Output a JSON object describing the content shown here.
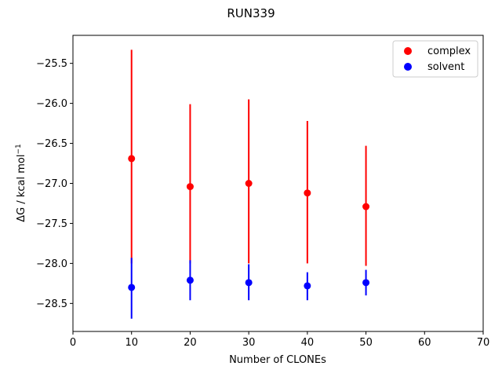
{
  "chart_data": {
    "type": "scatter",
    "title": "RUN339",
    "xlabel": "Number of CLONEs",
    "ylabel": "ΔG / kcal mol",
    "ylabel_sup": "−1",
    "xlim": [
      0,
      70
    ],
    "ylim": [
      -28.85,
      -25.15
    ],
    "xticks": [
      0,
      10,
      20,
      30,
      40,
      50,
      60,
      70
    ],
    "xtick_labels": [
      "0",
      "10",
      "20",
      "30",
      "40",
      "50",
      "60",
      "70"
    ],
    "yticks": [
      -25.5,
      -26.0,
      -26.5,
      -27.0,
      -27.5,
      -28.0,
      -28.5
    ],
    "ytick_labels": [
      "−25.5",
      "−26.0",
      "−26.5",
      "−27.0",
      "−27.5",
      "−28.0",
      "−28.5"
    ],
    "grid": false,
    "legend_position": "top-right",
    "series": [
      {
        "name": "complex",
        "color": "#ff0000",
        "x": [
          10,
          20,
          30,
          40,
          50
        ],
        "y": [
          -26.69,
          -27.04,
          -27.0,
          -27.12,
          -27.29
        ],
        "err_low": [
          -28.0,
          -28.0,
          -28.0,
          -28.0,
          -28.03
        ],
        "err_high": [
          -25.33,
          -26.01,
          -25.95,
          -26.22,
          -26.53
        ]
      },
      {
        "name": "solvent",
        "color": "#0000ff",
        "x": [
          10,
          20,
          30,
          40,
          50
        ],
        "y": [
          -28.3,
          -28.21,
          -28.24,
          -28.28,
          -28.24
        ],
        "err_low": [
          -28.69,
          -28.46,
          -28.46,
          -28.46,
          -28.4
        ],
        "err_high": [
          -27.93,
          -27.96,
          -28.01,
          -28.11,
          -28.08
        ]
      }
    ]
  }
}
